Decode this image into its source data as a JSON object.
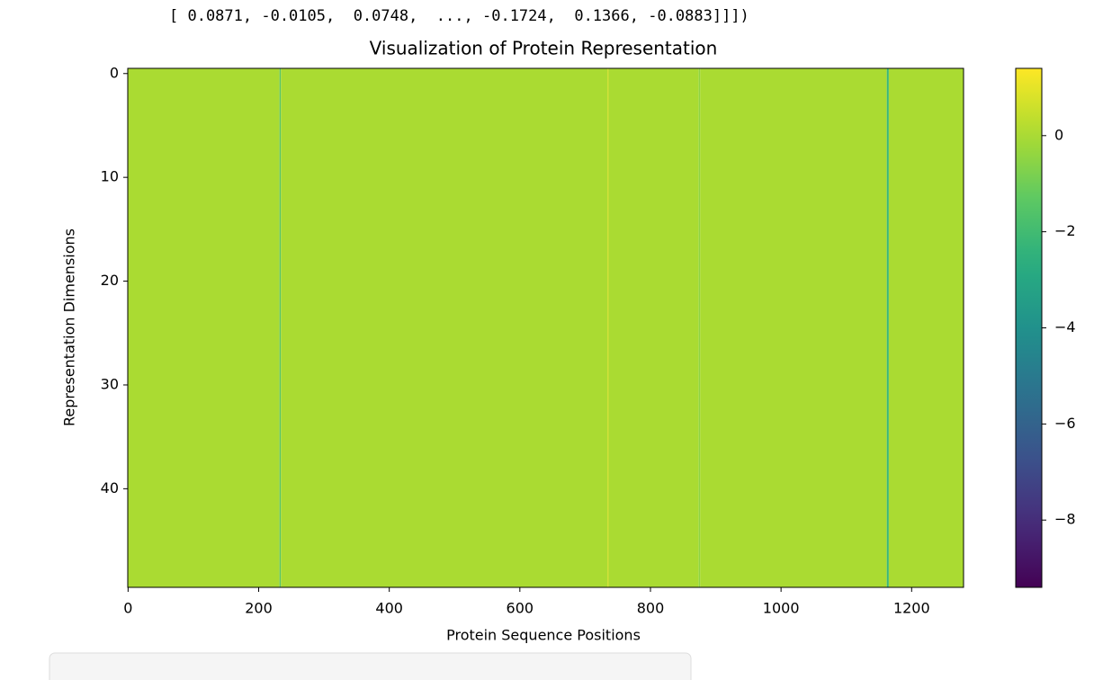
{
  "output_text": "[ 0.0871, -0.0105,  0.0748,  ..., -0.1724,  0.1366, -0.0883]]])",
  "chart_data": {
    "type": "heatmap",
    "title": "Visualization of Protein Representation",
    "x_label": "Protein Sequence Positions",
    "y_label": "Representation Dimensions",
    "colormap": "viridis",
    "xbins": [
      -0.5,
      232,
      234,
      734,
      736,
      874,
      876,
      1162,
      1165,
      1279.5
    ],
    "values": [
      0,
      -1.5,
      0,
      0.6,
      0,
      -0.5,
      0,
      -2.2,
      0
    ],
    "xlim": [
      -0.5,
      1279.5
    ],
    "ylim": [
      49.5,
      -0.5
    ],
    "xticks": [
      0,
      200,
      400,
      600,
      800,
      1000,
      1200
    ],
    "yticks": [
      0,
      10,
      20,
      30,
      40
    ],
    "clim": [
      -9.4,
      1.4
    ],
    "cticks": [
      0,
      {
        "value": -2,
        "label": "−2"
      },
      {
        "value": -4,
        "label": "−4"
      },
      {
        "value": -6,
        "label": "−6"
      },
      {
        "value": -8,
        "label": "−8"
      }
    ]
  }
}
